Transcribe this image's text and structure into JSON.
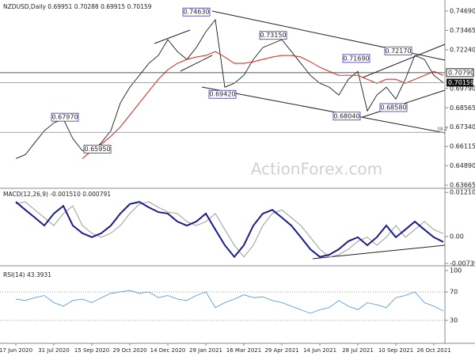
{
  "chart_data": [
    {
      "type": "line",
      "title": "NZDUSD,Daily 0.69951 0.70288 0.69915 0.70159",
      "watermark": "ActionForex.com",
      "ylim": [
        0.6352,
        0.7524
      ],
      "yticks": [
        {
          "value": 0.7469,
          "label": "0.74690"
        },
        0.73465,
        {
          "value": 0.7224,
          "label": "0.72240"
        },
        {
          "value": 0.6979,
          "label": "0.69790"
        },
        0.68565,
        {
          "value": 0.6734,
          "label": "0.67340"
        },
        0.66115,
        {
          "value": 0.6489,
          "label": "0.64890"
        },
        0.63665
      ],
      "series": [
        {
          "color": "#1a1a1a",
          "values": [
            0.6535,
            0.656,
            0.6636,
            0.6711,
            0.6761,
            0.6786,
            0.6661,
            0.6585,
            0.6575,
            0.6636,
            0.6711,
            0.6887,
            0.6987,
            0.7062,
            0.7138,
            0.7188,
            0.7288,
            0.7213,
            0.7163,
            0.7238,
            0.7338,
            0.7414,
            0.6987,
            0.7012,
            0.7062,
            0.7163,
            0.7238,
            0.7263,
            0.7288,
            0.7213,
            0.7138,
            0.7062,
            0.7012,
            0.6987,
            0.6937,
            0.7037,
            0.7087,
            0.6837,
            0.6937,
            0.6987,
            0.6912,
            0.7037,
            0.7188,
            0.7163,
            0.7062,
            0.7016
          ]
        },
        {
          "color": "#e03030",
          "values": [
            null,
            null,
            null,
            null,
            null,
            null,
            null,
            0.6535,
            0.6585,
            0.6626,
            0.6676,
            0.6736,
            0.6811,
            0.6887,
            0.6962,
            0.7037,
            0.7098,
            0.7138,
            0.7163,
            0.7178,
            0.7188,
            0.7213,
            0.7178,
            0.7138,
            0.7138,
            0.7148,
            0.7163,
            0.7178,
            0.7188,
            0.7188,
            0.7178,
            0.7148,
            0.7113,
            0.7087,
            0.7062,
            0.7062,
            0.7062,
            0.7037,
            0.7012,
            0.7037,
            0.7037,
            0.7012,
            0.7037,
            0.7062,
            0.7087,
            0.7062
          ]
        }
      ],
      "levels": [
        {
          "value": 0.7079,
          "label": "0.70790"
        },
        {
          "value": 0.70159,
          "label": "0.70159"
        },
        {
          "value": 0.6701,
          "label": "38.2"
        }
      ],
      "annotations": [
        {
          "label": "0.74630",
          "value": 0.7463
        },
        {
          "label": "0.73150",
          "value": 0.7315
        },
        {
          "label": "0.72170",
          "value": 0.7217
        },
        {
          "label": "0.71690",
          "value": 0.7169
        },
        {
          "label": "0.69420",
          "value": 0.6942
        },
        {
          "label": "0.67970",
          "value": 0.6797
        },
        {
          "label": "0.65950",
          "value": 0.6595
        },
        {
          "label": "0.68580",
          "value": 0.6858
        },
        {
          "label": "0.68040",
          "value": 0.6804
        }
      ]
    },
    {
      "type": "line",
      "title": "MACD(12,26,9) -0.001510 0.000791",
      "ylim": [
        -0.0074,
        0.0128
      ],
      "yticks": [
        0.012105,
        {
          "value": 0,
          "label": "0.00"
        },
        -0.007391
      ],
      "series": [
        {
          "color": "#aaaaaa",
          "values": [
            0.009,
            0.0095,
            0.0073,
            0.0052,
            0.003,
            0.0063,
            0.0084,
            0.003,
            0.0009,
            -0.0002,
            0.0009,
            0.003,
            0.0063,
            0.0089,
            0.0095,
            0.008,
            0.0067,
            0.0063,
            0.0041,
            0.003,
            0.0041,
            0.0063,
            0.0019,
            -0.0024,
            -0.0056,
            -0.0024,
            0.003,
            0.0063,
            0.0073,
            0.0052,
            0.003,
            -0.0002,
            -0.0035,
            -0.0056,
            -0.005,
            -0.0035,
            -0.0013,
            -0.0002,
            -0.0024,
            -0.0002,
            0.003,
            -0.0002,
            0.0019,
            0.0041,
            0.0019,
            0.0008
          ]
        },
        {
          "color": "#1a1a8c",
          "values": [
            0.0095,
            0.0073,
            0.0052,
            0.003,
            0.0063,
            0.0084,
            0.003,
            0.0009,
            -0.0002,
            0.0009,
            0.003,
            0.0063,
            0.0089,
            0.0095,
            0.008,
            0.0067,
            0.0063,
            0.0041,
            0.003,
            0.0041,
            0.0063,
            0.0019,
            -0.0024,
            -0.0056,
            -0.0024,
            0.003,
            0.0063,
            0.0073,
            0.0052,
            0.003,
            -0.0002,
            -0.0035,
            -0.0056,
            -0.005,
            -0.0035,
            -0.0013,
            -0.0002,
            -0.0024,
            -0.0002,
            0.003,
            -0.0002,
            0.0019,
            0.0041,
            0.0019,
            -0.0002,
            -0.0015
          ]
        }
      ]
    },
    {
      "type": "line",
      "title": "RSI(14) 43.3931",
      "grid": true,
      "ylim": [
        0,
        100
      ],
      "yticks": [
        100,
        70,
        30
      ],
      "categories": [
        "17 Jun 2020",
        null,
        null,
        null,
        "31 Jul 2020",
        null,
        null,
        null,
        "15 Sep 2020",
        null,
        null,
        null,
        "29 Oct 2020",
        null,
        null,
        null,
        "14 Dec 2020",
        null,
        null,
        null,
        "29 Jan 2021",
        null,
        null,
        null,
        "16 Mar 2021",
        null,
        null,
        null,
        "29 Apr 2021",
        null,
        null,
        null,
        "14 Jun 2021",
        null,
        null,
        null,
        "28 Jul 2021",
        null,
        null,
        null,
        "10 Sep 2021",
        null,
        null,
        null,
        "26 Oct 2021",
        null
      ],
      "series": [
        {
          "color": "#4f8fe0",
          "values": [
            60,
            58,
            62,
            65,
            55,
            50,
            58,
            60,
            55,
            62,
            68,
            70,
            72,
            68,
            70,
            62,
            65,
            60,
            58,
            65,
            70,
            48,
            55,
            60,
            66,
            62,
            63,
            58,
            55,
            50,
            45,
            40,
            45,
            48,
            58,
            50,
            45,
            55,
            52,
            48,
            62,
            65,
            70,
            55,
            50,
            43.3931
          ]
        }
      ]
    }
  ]
}
